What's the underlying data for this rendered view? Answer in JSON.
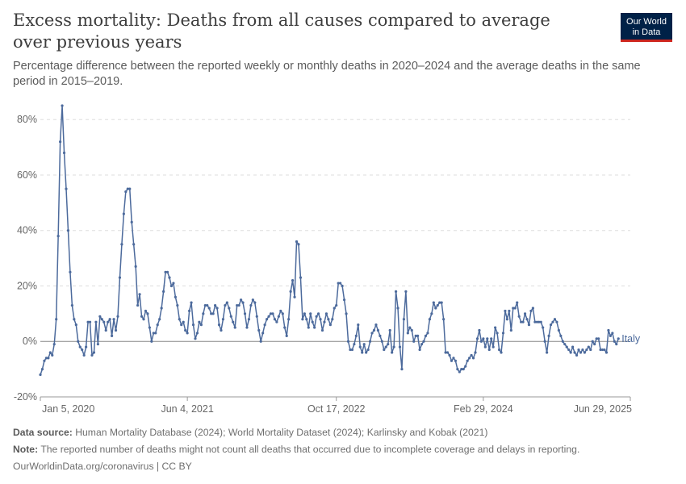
{
  "header": {
    "title": "Excess mortality: Deaths from all causes compared to average over previous years",
    "subtitle": "Percentage difference between the reported weekly or monthly deaths in 2020–2024 and the average deaths in the same period in 2015–2019."
  },
  "logo": {
    "line1": "Our World",
    "line2": "in Data"
  },
  "footer": {
    "source_label": "Data source:",
    "source_text": " Human Mortality Database (2024); World Mortality Dataset (2024); Karlinsky and Kobak (2021)",
    "note_label": "Note:",
    "note_text": " The reported number of deaths might not count all deaths that occurred due to incomplete coverage and delays in reporting.",
    "credit": "OurWorldinData.org/coronavirus | CC BY"
  },
  "colors": {
    "series": "#4c6a9c",
    "grid": "#dddddd",
    "zero": "#888888"
  },
  "chart_data": {
    "type": "line",
    "xlabel": "",
    "ylabel": "",
    "ylim": [
      -20,
      85
    ],
    "yticks": [
      -20,
      0,
      20,
      40,
      60,
      80
    ],
    "ytick_labels": [
      "-20%",
      "0%",
      "20%",
      "40%",
      "60%",
      "80%"
    ],
    "xtick_labels": [
      "Jan 5, 2020",
      "Jun 4, 2021",
      "Oct 17, 2022",
      "Feb 29, 2024",
      "Jun 29, 2025"
    ],
    "xtick_weeks": [
      0,
      74,
      149,
      223,
      297
    ],
    "grid": "horizontal dashed",
    "legend": "label at line end",
    "series": [
      {
        "name": "Italy",
        "x_start": "Jan 5, 2020",
        "x_step": "1 week",
        "values": [
          -12,
          -10,
          -7,
          -6,
          -6,
          -4,
          -5,
          -1,
          8,
          38,
          72,
          85,
          68,
          55,
          40,
          25,
          13,
          8,
          6,
          0,
          -2,
          -3,
          -5,
          -2,
          7,
          7,
          -5,
          -4,
          7,
          -1,
          9,
          8,
          7,
          4,
          7,
          8,
          2,
          8,
          4,
          9,
          23,
          35,
          46,
          54,
          55,
          55,
          43,
          35,
          27,
          13,
          17,
          9,
          8,
          11,
          10,
          5,
          0,
          3,
          3,
          6,
          8,
          12,
          18,
          25,
          25,
          23,
          20,
          21,
          16,
          13,
          8,
          6,
          7,
          4,
          3,
          11,
          14,
          6,
          1,
          3,
          7,
          6,
          10,
          13,
          13,
          12,
          10,
          10,
          13,
          12,
          6,
          4,
          8,
          13,
          14,
          12,
          9,
          7,
          5,
          13,
          13,
          15,
          14,
          10,
          5,
          8,
          13,
          15,
          14,
          9,
          4,
          0,
          3,
          6,
          8,
          9,
          10,
          10,
          8,
          7,
          9,
          11,
          10,
          5,
          2,
          8,
          18,
          22,
          16,
          36,
          35,
          23,
          8,
          10,
          8,
          5,
          10,
          7,
          5,
          9,
          10,
          8,
          4,
          7,
          10,
          8,
          6,
          8,
          12,
          13,
          21,
          21,
          20,
          15,
          10,
          0,
          -3,
          -3,
          -1,
          2,
          6,
          -2,
          -4,
          -1,
          -4,
          -3,
          0,
          3,
          4,
          6,
          4,
          2,
          0,
          -3,
          -2,
          -1,
          4,
          -4,
          -2,
          18,
          12,
          -2,
          -10,
          8,
          18,
          3,
          5,
          4,
          0,
          2,
          2,
          -3,
          -1,
          0,
          2,
          3,
          8,
          10,
          14,
          12,
          13,
          14,
          14,
          8,
          -4,
          -4,
          -5,
          -7,
          -6,
          -7,
          -10,
          -11,
          -10,
          -10,
          -9,
          -7,
          -6,
          -5,
          -6,
          -4,
          1,
          4,
          0,
          1,
          -2,
          1,
          -3,
          1,
          -2,
          5,
          3,
          -3,
          -4,
          3,
          11,
          8,
          11,
          4,
          12,
          12,
          14,
          9,
          7,
          7,
          10,
          8,
          6,
          11,
          12,
          7,
          7,
          7,
          7,
          5,
          0,
          -4,
          2,
          6,
          7,
          8,
          7,
          4,
          2,
          0,
          -1,
          -2,
          -3,
          -4,
          -2,
          -4,
          -5,
          -3,
          -4,
          -3,
          -4,
          -3,
          -2,
          -3,
          0,
          -1,
          1,
          1,
          -3,
          -3,
          -3,
          -4,
          4,
          2,
          3,
          0,
          -1,
          1
        ]
      }
    ]
  }
}
